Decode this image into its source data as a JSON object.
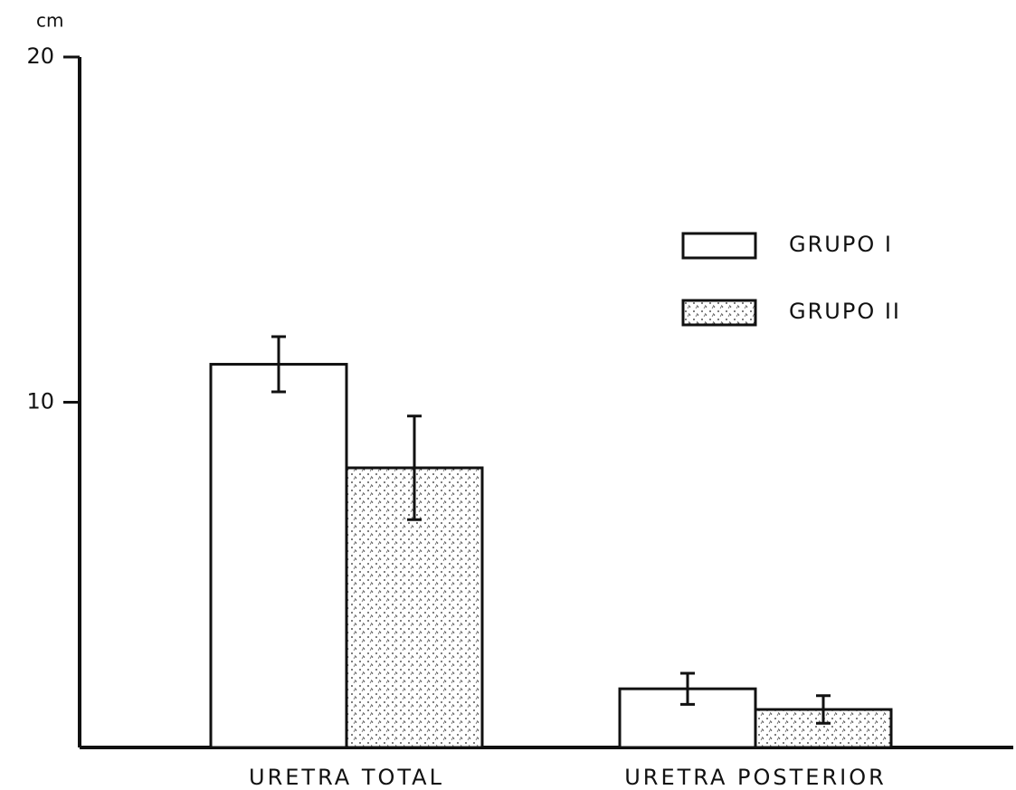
{
  "chart_data": {
    "type": "bar",
    "y_label": "cm",
    "categories": [
      "URETRA TOTAL",
      "URETRA POSTERIOR"
    ],
    "series": [
      {
        "name": "GRUPO I",
        "color": "#ffffff",
        "values": [
          11.1,
          1.7
        ],
        "errors": [
          0.8,
          0.45
        ]
      },
      {
        "name": "GRUPO II",
        "color": "#ffffff",
        "hatch": "dots",
        "values": [
          8.1,
          1.1
        ],
        "errors": [
          1.5,
          0.4
        ]
      }
    ],
    "ylim": [
      0,
      20
    ],
    "yticks": [
      10,
      20
    ],
    "grid": false,
    "legend": "upper right"
  }
}
